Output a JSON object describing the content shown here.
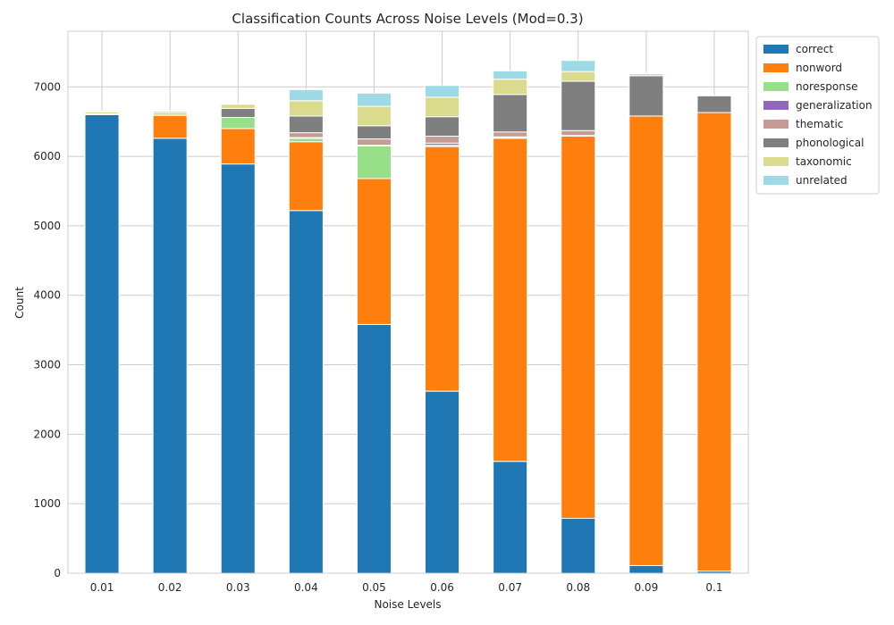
{
  "chart_data": {
    "type": "bar",
    "stacked": true,
    "title": "Classification Counts Across Noise Levels (Mod=0.3)",
    "xlabel": "Noise Levels",
    "ylabel": "Count",
    "ylim": [
      0,
      7800
    ],
    "yticks": [
      "0",
      "1000",
      "2000",
      "3000",
      "4000",
      "5000",
      "6000",
      "7000"
    ],
    "grid": true,
    "legend_position": "upper-right-outside",
    "categories": [
      "0.01",
      "0.02",
      "0.03",
      "0.04",
      "0.05",
      "0.06",
      "0.07",
      "0.08",
      "0.09",
      "0.1"
    ],
    "series": [
      {
        "name": "correct",
        "color": "#1f77b4",
        "values": [
          6600,
          6260,
          5890,
          5220,
          3580,
          2620,
          1610,
          790,
          110,
          30
        ]
      },
      {
        "name": "nonword",
        "color": "#ff7f0e",
        "values": [
          10,
          330,
          510,
          990,
          2100,
          3520,
          4650,
          5500,
          6470,
          6600
        ]
      },
      {
        "name": "noresponse",
        "color": "#98df8a",
        "values": [
          0,
          0,
          160,
          50,
          470,
          20,
          10,
          0,
          0,
          0
        ]
      },
      {
        "name": "generalization",
        "color": "#9467bd",
        "values": [
          0,
          0,
          0,
          10,
          10,
          30,
          10,
          10,
          0,
          0
        ]
      },
      {
        "name": "thematic",
        "color": "#c49c94",
        "values": [
          0,
          0,
          0,
          70,
          90,
          100,
          70,
          70,
          0,
          0
        ]
      },
      {
        "name": "phonological",
        "color": "#7f7f7f",
        "values": [
          0,
          0,
          130,
          240,
          190,
          280,
          540,
          710,
          580,
          240
        ]
      },
      {
        "name": "taxonomic",
        "color": "#dbdb8d",
        "values": [
          30,
          40,
          60,
          220,
          280,
          280,
          220,
          140,
          30,
          0
        ]
      },
      {
        "name": "unrelated",
        "color": "#9edae5",
        "values": [
          10,
          20,
          10,
          160,
          190,
          170,
          120,
          160,
          10,
          0
        ]
      }
    ]
  }
}
